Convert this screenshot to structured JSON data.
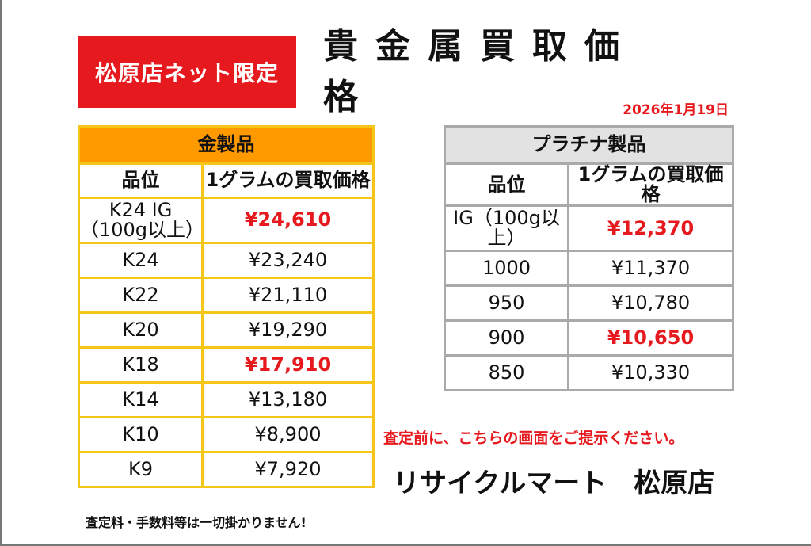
{
  "badge": "松原店ネット限定",
  "title": "貴金属買取価格",
  "date": "2026年1月19日",
  "gold": {
    "header": "金製品",
    "col_grade": "品位",
    "col_price": "1グラムの買取価格",
    "rows": [
      {
        "grade_line1": "K24 IG",
        "grade_line2": "（100g以上）",
        "price": "¥24,610",
        "highlight": true
      },
      {
        "grade": "K24",
        "price": "¥23,240",
        "highlight": false
      },
      {
        "grade": "K22",
        "price": "¥21,110",
        "highlight": false
      },
      {
        "grade": "K20",
        "price": "¥19,290",
        "highlight": false
      },
      {
        "grade": "K18",
        "price": "¥17,910",
        "highlight": true
      },
      {
        "grade": "K14",
        "price": "¥13,180",
        "highlight": false
      },
      {
        "grade": "K10",
        "price": "¥8,900",
        "highlight": false
      },
      {
        "grade": "K9",
        "price": "¥7,920",
        "highlight": false
      }
    ]
  },
  "platinum": {
    "header": "プラチナ製品",
    "col_grade": "品位",
    "col_price": "1グラムの買取価格",
    "rows": [
      {
        "grade_line1": "IG（100g以",
        "grade_line2": "上）",
        "price": "¥12,370",
        "highlight": true
      },
      {
        "grade": "1000",
        "price": "¥11,370",
        "highlight": false
      },
      {
        "grade": "950",
        "price": "¥10,780",
        "highlight": false
      },
      {
        "grade": "900",
        "price": "¥10,650",
        "highlight": true
      },
      {
        "grade": "850",
        "price": "¥10,330",
        "highlight": false
      }
    ]
  },
  "note": "査定前に、こちらの画面をご提示ください。",
  "shop_name": "リサイクルマート　松原店",
  "fee_note": "査定料・手数料等は一切掛かりません!",
  "colors": {
    "red": "#e6191e",
    "gold_header": "#ff9900",
    "gold_border": "#f5c518",
    "platinum_header": "#e2e2e2",
    "platinum_border": "#aaaaaa"
  }
}
